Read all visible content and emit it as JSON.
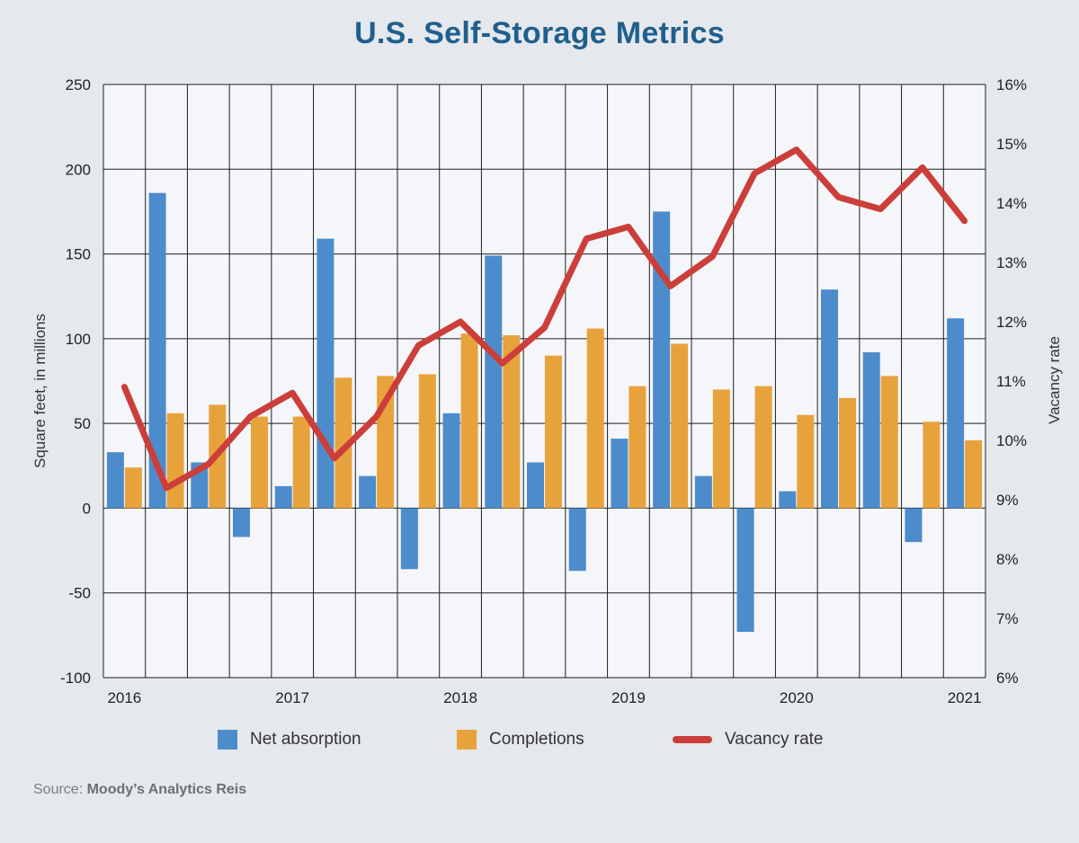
{
  "title": "U.S. Self-Storage Metrics",
  "source": {
    "prefix": "Source: ",
    "name": "Moody’s Analytics Reis"
  },
  "colors": {
    "net_absorption": "#4d8ccb",
    "completions": "#e8a23c",
    "vacancy_rate": "#cc3e3a",
    "title": "#1f5f8e",
    "plot_bg": "#f4f6f9",
    "grid": "#1e1e1e"
  },
  "legend": [
    {
      "label": "Net absorption",
      "kind": "bar",
      "color": "#4d8ccb"
    },
    {
      "label": "Completions",
      "kind": "bar",
      "color": "#e8a23c"
    },
    {
      "label": "Vacancy rate",
      "kind": "line",
      "color": "#cc3e3a"
    }
  ],
  "chart_data": {
    "type": "bar",
    "title": "U.S. Self-Storage Metrics",
    "ylabel": "Square feet, in millions",
    "y2label": "Vacancy rate",
    "ylim": [
      -100,
      250
    ],
    "y_ticks": [
      -100,
      -50,
      0,
      50,
      100,
      150,
      200,
      250
    ],
    "y2lim": [
      6,
      16
    ],
    "y2_ticks": [
      6,
      7,
      8,
      9,
      10,
      11,
      12,
      13,
      14,
      15,
      16
    ],
    "y2_unit": "%",
    "x_tick_labels": [
      "2016",
      "2017",
      "2018",
      "2019",
      "2020",
      "2021"
    ],
    "x_tick_positions": [
      0,
      4,
      8,
      12,
      16,
      20
    ],
    "periods": 21,
    "grid": true,
    "legend_position": "bottom",
    "series": [
      {
        "name": "Net absorption",
        "type": "bar",
        "axis": "left",
        "values": [
          33,
          186,
          27,
          -17,
          13,
          159,
          19,
          -36,
          56,
          149,
          27,
          -37,
          41,
          175,
          19,
          -73,
          10,
          129,
          92,
          -20,
          112
        ]
      },
      {
        "name": "Completions",
        "type": "bar",
        "axis": "left",
        "values": [
          24,
          56,
          61,
          54,
          54,
          77,
          78,
          79,
          103,
          102,
          90,
          106,
          72,
          97,
          70,
          72,
          55,
          65,
          78,
          51,
          40
        ]
      },
      {
        "name": "Vacancy rate",
        "type": "line",
        "axis": "right",
        "values": [
          10.9,
          9.2,
          9.6,
          10.4,
          10.8,
          9.7,
          10.4,
          11.6,
          12.0,
          11.3,
          11.9,
          13.4,
          13.6,
          12.6,
          13.1,
          14.5,
          14.9,
          14.1,
          13.9,
          14.6,
          13.7
        ]
      }
    ]
  }
}
